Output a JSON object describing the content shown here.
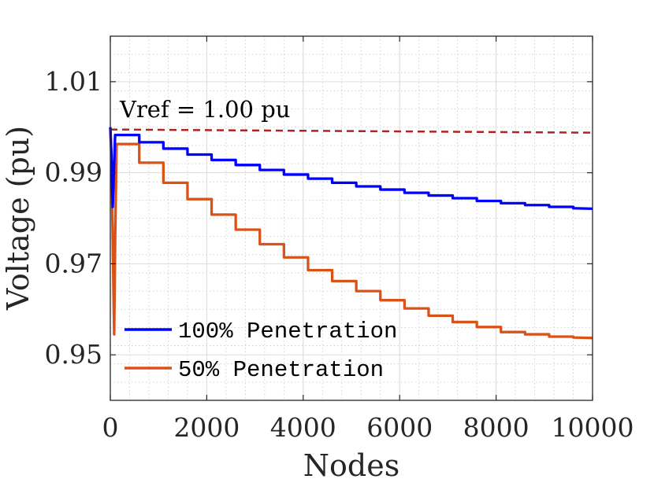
{
  "chart_data": {
    "type": "line",
    "title": "",
    "xlabel": "Nodes",
    "ylabel": "Voltage (pu)",
    "xlim": [
      0,
      10000
    ],
    "ylim": [
      0.94,
      1.02
    ],
    "xticks": [
      0,
      2000,
      4000,
      6000,
      8000,
      10000
    ],
    "xtick_labels": [
      "0",
      "2000",
      "4000",
      "6000",
      "8000",
      "10000"
    ],
    "yticks": [
      0.95,
      0.97,
      0.99,
      1.01
    ],
    "ytick_labels": [
      "0.95",
      "0.97",
      "0.99",
      "1.01"
    ],
    "grid": true,
    "minor_grid": true,
    "legend_location": "bottom-left",
    "annotation": "Vref = 1.00 pu",
    "series": [
      {
        "name": "100% Penetration",
        "color": "#0000ff",
        "style": "solid",
        "x": [
          0,
          20,
          50,
          80,
          100,
          600,
          601,
          1100,
          1101,
          1600,
          1601,
          2100,
          2101,
          2600,
          2601,
          3100,
          3101,
          3600,
          3601,
          4100,
          4101,
          4600,
          4601,
          5100,
          5101,
          5600,
          5601,
          6100,
          6101,
          6600,
          6601,
          7100,
          7101,
          7600,
          7601,
          8100,
          8101,
          8600,
          8601,
          9100,
          9101,
          9600,
          9601,
          10000
        ],
        "y": [
          1.0,
          0.995,
          0.9825,
          0.992,
          0.9983,
          0.9983,
          0.9967,
          0.9967,
          0.9953,
          0.9953,
          0.994,
          0.994,
          0.9928,
          0.9928,
          0.9917,
          0.9917,
          0.9906,
          0.9906,
          0.9896,
          0.9896,
          0.9887,
          0.9887,
          0.9878,
          0.9878,
          0.987,
          0.987,
          0.9863,
          0.9863,
          0.9856,
          0.9856,
          0.985,
          0.985,
          0.9844,
          0.9844,
          0.9838,
          0.9838,
          0.9833,
          0.9833,
          0.9829,
          0.9829,
          0.9825,
          0.9825,
          0.9822,
          0.9821
        ]
      },
      {
        "name": "50% Penetration",
        "color": "#d95319",
        "style": "solid",
        "x": [
          0,
          30,
          60,
          80,
          100,
          130,
          600,
          601,
          1100,
          1101,
          1600,
          1601,
          2100,
          2101,
          2600,
          2601,
          3100,
          3101,
          3600,
          3601,
          4100,
          4101,
          4600,
          4601,
          5100,
          5101,
          5600,
          5601,
          6100,
          6101,
          6600,
          6601,
          7100,
          7101,
          7600,
          7601,
          8100,
          8101,
          8600,
          8601,
          9100,
          9101,
          9600,
          9601,
          10000
        ],
        "y": [
          1.0,
          0.99,
          0.968,
          0.9545,
          0.975,
          0.9963,
          0.9963,
          0.9922,
          0.9922,
          0.9878,
          0.9878,
          0.9842,
          0.9842,
          0.9808,
          0.9808,
          0.9775,
          0.9775,
          0.9743,
          0.9743,
          0.9714,
          0.9714,
          0.9686,
          0.9686,
          0.9662,
          0.9662,
          0.964,
          0.964,
          0.962,
          0.962,
          0.9602,
          0.9602,
          0.9586,
          0.9586,
          0.9572,
          0.9572,
          0.9561,
          0.9561,
          0.955,
          0.955,
          0.9545,
          0.9545,
          0.954,
          0.954,
          0.9538,
          0.9537
        ]
      },
      {
        "name": "Vref",
        "color": "#b22222",
        "style": "dashed",
        "x": [
          0,
          10000
        ],
        "y": [
          0.9995,
          0.9988
        ]
      }
    ]
  }
}
